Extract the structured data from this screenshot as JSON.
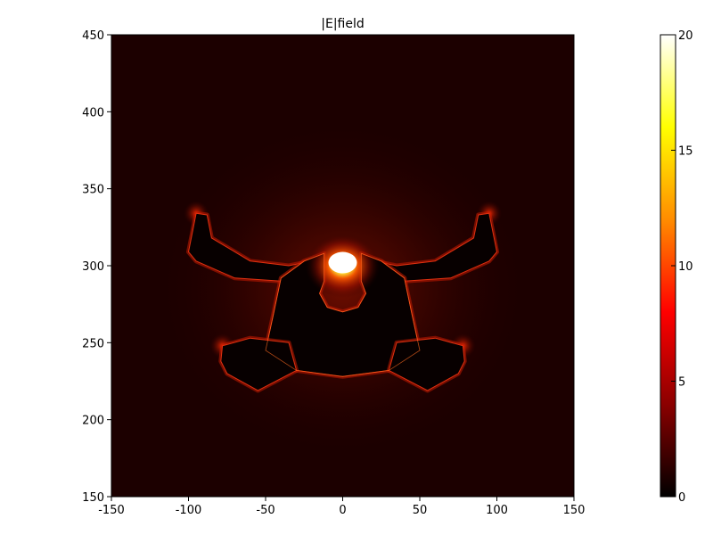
{
  "chart_data": {
    "type": "heatmap",
    "title": "|E|field",
    "xlabel": "",
    "ylabel": "",
    "xlim": [
      -150,
      150
    ],
    "ylim": [
      150,
      450
    ],
    "x_ticks": [
      "-150",
      "-100",
      "-50",
      "0",
      "50",
      "100",
      "150"
    ],
    "y_ticks": [
      "150",
      "200",
      "250",
      "300",
      "350",
      "400",
      "450"
    ],
    "colorbar": {
      "range": [
        0,
        20
      ],
      "ticks": [
        "0",
        "5",
        "10",
        "15",
        "20"
      ],
      "colormap": "hot",
      "stops": [
        "#000000",
        "#8b0000",
        "#ff0000",
        "#ff8c00",
        "#ffff00",
        "#ffffff"
      ]
    },
    "grid": false,
    "background_value": 0.8,
    "hotspot": {
      "x": 0,
      "y": 300,
      "value": 20
    },
    "structure": {
      "description_units": "data",
      "inner_value": 0.2,
      "regions": [
        {
          "name": "upper-left-arm",
          "points": [
            [
              -95,
              334
            ],
            [
              -88,
              333
            ],
            [
              -85,
              318
            ],
            [
              -60,
              303
            ],
            [
              -35,
              300
            ],
            [
              -25,
              302
            ],
            [
              -40,
              290
            ],
            [
              -70,
              292
            ],
            [
              -95,
              303
            ],
            [
              -100,
              309
            ]
          ]
        },
        {
          "name": "upper-right-arm",
          "points": [
            [
              95,
              334
            ],
            [
              88,
              333
            ],
            [
              85,
              318
            ],
            [
              60,
              303
            ],
            [
              35,
              300
            ],
            [
              25,
              302
            ],
            [
              40,
              290
            ],
            [
              70,
              292
            ],
            [
              95,
              303
            ],
            [
              100,
              309
            ]
          ]
        },
        {
          "name": "center-body",
          "points": [
            [
              -25,
              303
            ],
            [
              -12,
              308
            ],
            [
              -12,
              290
            ],
            [
              -15,
              282
            ],
            [
              -10,
              273
            ],
            [
              0,
              270
            ],
            [
              10,
              273
            ],
            [
              15,
              282
            ],
            [
              12,
              290
            ],
            [
              12,
              308
            ],
            [
              25,
              303
            ],
            [
              40,
              292
            ],
            [
              45,
              268
            ],
            [
              50,
              245
            ],
            [
              30,
              232
            ],
            [
              0,
              228
            ],
            [
              -30,
              232
            ],
            [
              -50,
              245
            ],
            [
              -45,
              268
            ],
            [
              -40,
              292
            ]
          ]
        },
        {
          "name": "lower-left-arm",
          "points": [
            [
              -78,
              248
            ],
            [
              -60,
              253
            ],
            [
              -35,
              250
            ],
            [
              -30,
              232
            ],
            [
              -55,
              219
            ],
            [
              -75,
              230
            ],
            [
              -79,
              238
            ]
          ]
        },
        {
          "name": "lower-right-arm",
          "points": [
            [
              78,
              248
            ],
            [
              60,
              253
            ],
            [
              35,
              250
            ],
            [
              30,
              232
            ],
            [
              55,
              219
            ],
            [
              75,
              230
            ],
            [
              79,
              238
            ]
          ]
        }
      ]
    }
  }
}
